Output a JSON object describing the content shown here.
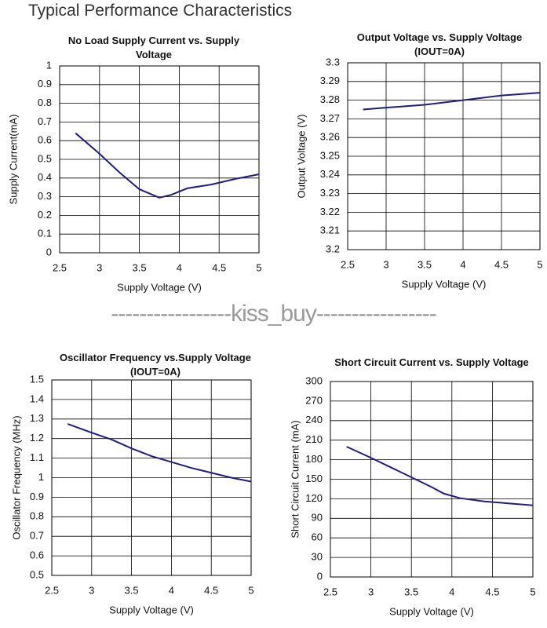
{
  "title": "Typical Performance Characteristics",
  "watermark": "-----------------kiss_buy-----------------",
  "chart_data": [
    {
      "type": "line",
      "title": "No Load Supply Current vs. Supply Voltage",
      "x_label": "Supply Voltage (V)",
      "y_label": "Supply Current(mA)",
      "x": [
        2.7,
        3.0,
        3.25,
        3.5,
        3.75,
        3.9,
        4.1,
        4.4,
        4.7,
        5.0
      ],
      "values": [
        0.64,
        0.53,
        0.43,
        0.34,
        0.295,
        0.31,
        0.345,
        0.365,
        0.395,
        0.42
      ],
      "color": "#1f1f7a",
      "xlim": [
        2.5,
        5
      ],
      "xticks": [
        2.5,
        3,
        3.5,
        4,
        4.5,
        5
      ],
      "ylim": [
        0,
        1
      ],
      "yticks": [
        0,
        0.1,
        0.2,
        0.3,
        0.4,
        0.5,
        0.6,
        0.7,
        0.8,
        0.9,
        1
      ],
      "grid": true
    },
    {
      "type": "line",
      "title": "Output Voltage vs. Supply Voltage",
      "subtitle": "(IOUT=0A)",
      "x_label": "Supply Voltage (V)",
      "y_label": "Output Voltage (V)",
      "x": [
        2.7,
        3.0,
        3.5,
        4.0,
        4.5,
        5.0
      ],
      "values": [
        3.275,
        3.276,
        3.2775,
        3.28,
        3.2825,
        3.284
      ],
      "color": "#1f1f7a",
      "xlim": [
        2.5,
        5
      ],
      "xticks": [
        2.5,
        3,
        3.5,
        4,
        4.5,
        5
      ],
      "ylim": [
        3.2,
        3.3
      ],
      "yticks": [
        3.2,
        3.21,
        3.22,
        3.23,
        3.24,
        3.25,
        3.26,
        3.27,
        3.28,
        3.29,
        3.3
      ],
      "grid": true
    },
    {
      "type": "line",
      "title": "Oscillator Frequency vs.Supply Voltage",
      "subtitle": "(IOUT=0A)",
      "x_label": "Supply Voltage (V)",
      "y_label": "Oscillator Frequency (MHz)",
      "x": [
        2.7,
        3.0,
        3.25,
        3.5,
        3.75,
        4.0,
        4.25,
        4.5,
        4.75,
        5.0
      ],
      "values": [
        1.275,
        1.23,
        1.195,
        1.15,
        1.11,
        1.08,
        1.05,
        1.025,
        1.0,
        0.98
      ],
      "color": "#1f1f7a",
      "xlim": [
        2.5,
        5
      ],
      "xticks": [
        2.5,
        3,
        3.5,
        4,
        4.5,
        5
      ],
      "ylim": [
        0.5,
        1.5
      ],
      "yticks": [
        0.5,
        0.6,
        0.7,
        0.8,
        0.9,
        1,
        1.1,
        1.2,
        1.3,
        1.4,
        1.5
      ],
      "grid": true
    },
    {
      "type": "line",
      "title": "Short Circuit Current vs. Supply Voltage",
      "x_label": "Supply Voltage (V)",
      "y_label": "Short Circuit Current (mA)",
      "x": [
        2.7,
        3.0,
        3.25,
        3.5,
        3.75,
        3.9,
        4.1,
        4.4,
        4.7,
        5.0
      ],
      "values": [
        200,
        183,
        168,
        153,
        138,
        128,
        121,
        116,
        113,
        110
      ],
      "color": "#1f1f7a",
      "xlim": [
        2.5,
        5
      ],
      "xticks": [
        2.5,
        3,
        3.5,
        4,
        4.5,
        5
      ],
      "ylim": [
        0,
        300
      ],
      "yticks": [
        0,
        30,
        60,
        90,
        120,
        150,
        180,
        210,
        240,
        270,
        300
      ],
      "grid": true
    }
  ]
}
